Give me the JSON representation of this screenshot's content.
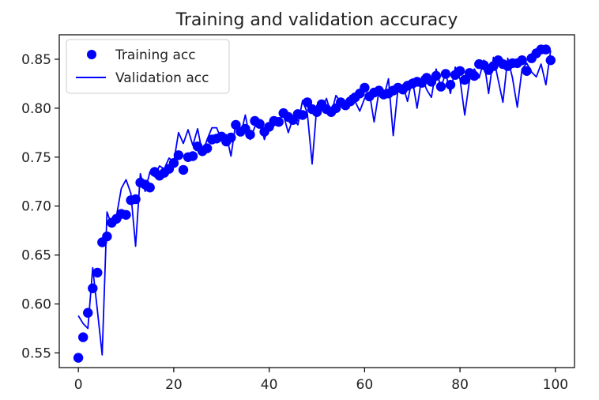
{
  "chart_data": {
    "type": "line",
    "title": "Training and validation accuracy",
    "xlabel": "",
    "ylabel": "",
    "xlim": [
      -4,
      104
    ],
    "ylim": [
      0.535,
      0.875
    ],
    "x_ticks": [
      0,
      20,
      40,
      60,
      80,
      100
    ],
    "y_ticks": [
      0.55,
      0.6,
      0.65,
      0.7,
      0.75,
      0.8,
      0.85
    ],
    "legend_position": "top-left",
    "grid": false,
    "series_color": "#0000ff",
    "series": [
      {
        "name": "Training acc",
        "style": "markers",
        "x": [
          0,
          1,
          2,
          3,
          4,
          5,
          6,
          7,
          8,
          9,
          10,
          11,
          12,
          13,
          14,
          15,
          16,
          17,
          18,
          19,
          20,
          21,
          22,
          23,
          24,
          25,
          26,
          27,
          28,
          29,
          30,
          31,
          32,
          33,
          34,
          35,
          36,
          37,
          38,
          39,
          40,
          41,
          42,
          43,
          44,
          45,
          46,
          47,
          48,
          49,
          50,
          51,
          52,
          53,
          54,
          55,
          56,
          57,
          58,
          59,
          60,
          61,
          62,
          63,
          64,
          65,
          66,
          67,
          68,
          69,
          70,
          71,
          72,
          73,
          74,
          75,
          76,
          77,
          78,
          79,
          80,
          81,
          82,
          83,
          84,
          85,
          86,
          87,
          88,
          89,
          90,
          91,
          92,
          93,
          94,
          95,
          96,
          97,
          98,
          99
        ],
        "values": [
          0.545,
          0.566,
          0.591,
          0.616,
          0.632,
          0.663,
          0.669,
          0.683,
          0.687,
          0.692,
          0.691,
          0.706,
          0.707,
          0.724,
          0.722,
          0.719,
          0.735,
          0.731,
          0.734,
          0.738,
          0.744,
          0.752,
          0.737,
          0.75,
          0.751,
          0.761,
          0.756,
          0.759,
          0.768,
          0.769,
          0.771,
          0.766,
          0.77,
          0.783,
          0.776,
          0.779,
          0.773,
          0.787,
          0.784,
          0.776,
          0.781,
          0.787,
          0.786,
          0.795,
          0.791,
          0.788,
          0.794,
          0.793,
          0.806,
          0.799,
          0.796,
          0.804,
          0.799,
          0.796,
          0.8,
          0.806,
          0.803,
          0.807,
          0.811,
          0.815,
          0.821,
          0.812,
          0.816,
          0.818,
          0.814,
          0.815,
          0.818,
          0.821,
          0.819,
          0.823,
          0.825,
          0.827,
          0.826,
          0.831,
          0.827,
          0.833,
          0.822,
          0.835,
          0.824,
          0.834,
          0.838,
          0.829,
          0.836,
          0.833,
          0.845,
          0.844,
          0.839,
          0.843,
          0.849,
          0.845,
          0.843,
          0.846,
          0.846,
          0.849,
          0.838,
          0.851,
          0.856,
          0.86,
          0.86,
          0.849
        ]
      },
      {
        "name": "Validation acc",
        "style": "line",
        "x": [
          0,
          1,
          2,
          3,
          4,
          5,
          6,
          7,
          8,
          9,
          10,
          11,
          12,
          13,
          14,
          15,
          16,
          17,
          18,
          19,
          20,
          21,
          22,
          23,
          24,
          25,
          26,
          27,
          28,
          29,
          30,
          31,
          32,
          33,
          34,
          35,
          36,
          37,
          38,
          39,
          40,
          41,
          42,
          43,
          44,
          45,
          46,
          47,
          48,
          49,
          50,
          51,
          52,
          53,
          54,
          55,
          56,
          57,
          58,
          59,
          60,
          61,
          62,
          63,
          64,
          65,
          66,
          67,
          68,
          69,
          70,
          71,
          72,
          73,
          74,
          75,
          76,
          77,
          78,
          79,
          80,
          81,
          82,
          83,
          84,
          85,
          86,
          87,
          88,
          89,
          90,
          91,
          92,
          93,
          94,
          95,
          96,
          97,
          98,
          99
        ],
        "values": [
          0.588,
          0.58,
          0.575,
          0.637,
          0.593,
          0.548,
          0.694,
          0.68,
          0.69,
          0.718,
          0.727,
          0.713,
          0.659,
          0.733,
          0.715,
          0.735,
          0.73,
          0.741,
          0.738,
          0.749,
          0.745,
          0.775,
          0.764,
          0.778,
          0.762,
          0.779,
          0.754,
          0.768,
          0.78,
          0.78,
          0.767,
          0.773,
          0.751,
          0.785,
          0.772,
          0.793,
          0.768,
          0.781,
          0.788,
          0.768,
          0.784,
          0.782,
          0.788,
          0.793,
          0.775,
          0.79,
          0.783,
          0.808,
          0.795,
          0.743,
          0.803,
          0.798,
          0.81,
          0.794,
          0.813,
          0.806,
          0.801,
          0.813,
          0.807,
          0.797,
          0.81,
          0.816,
          0.786,
          0.817,
          0.811,
          0.83,
          0.772,
          0.82,
          0.824,
          0.807,
          0.83,
          0.8,
          0.832,
          0.819,
          0.811,
          0.84,
          0.821,
          0.836,
          0.815,
          0.842,
          0.83,
          0.793,
          0.829,
          0.84,
          0.831,
          0.849,
          0.815,
          0.852,
          0.829,
          0.806,
          0.851,
          0.831,
          0.801,
          0.84,
          0.846,
          0.837,
          0.832,
          0.845,
          0.824,
          0.859
        ]
      }
    ]
  }
}
